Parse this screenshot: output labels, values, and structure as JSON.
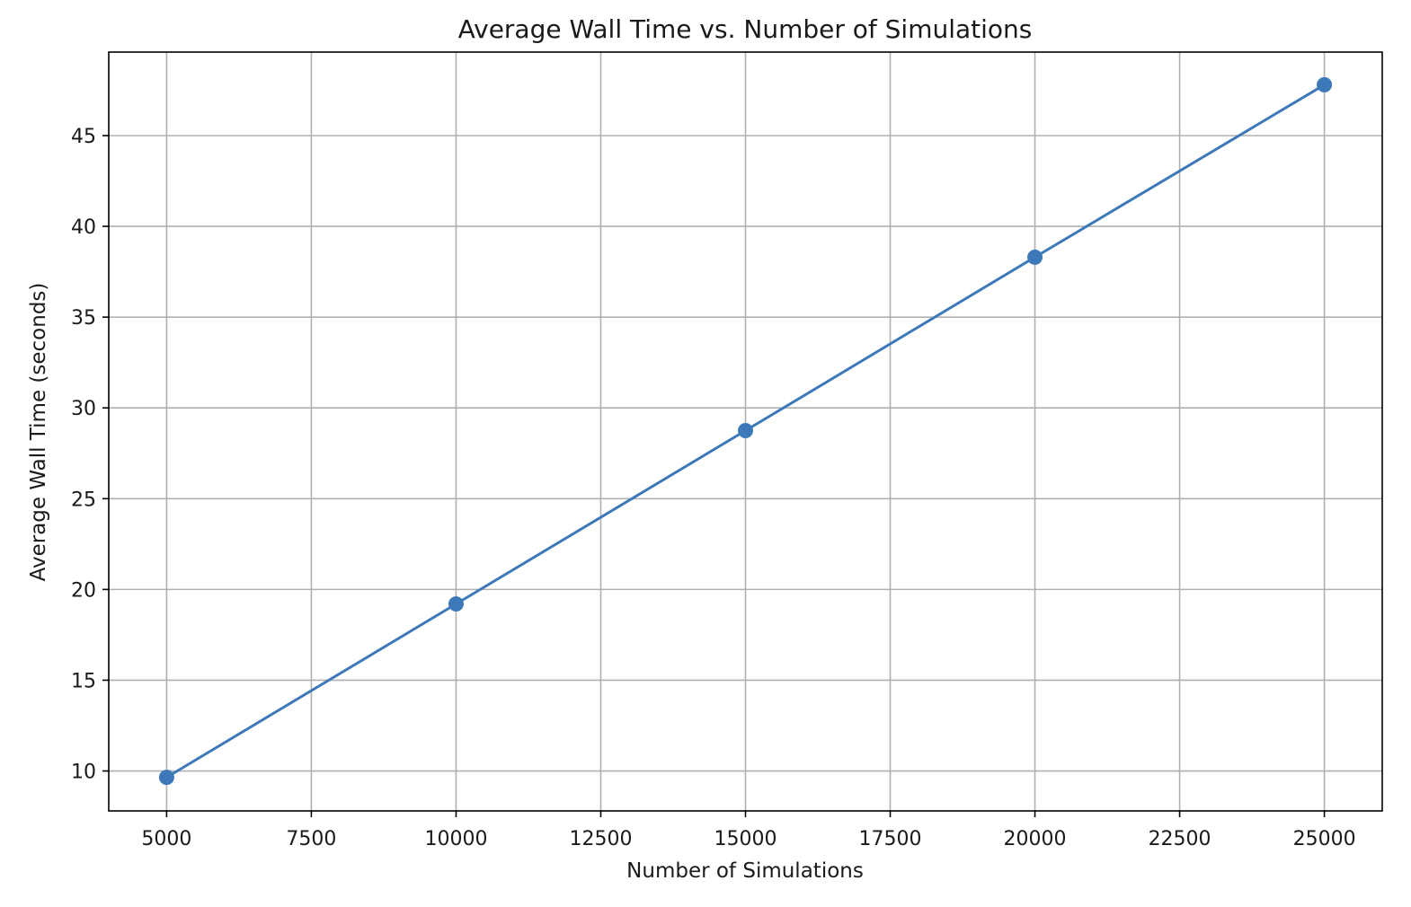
{
  "chart_data": {
    "type": "line",
    "title": "Average Wall Time vs. Number of Simulations",
    "xlabel": "Number of Simulations",
    "ylabel": "Average Wall Time (seconds)",
    "xlim": [
      4000,
      26000
    ],
    "ylim": [
      7.8,
      49.6
    ],
    "xticks": [
      5000,
      7500,
      10000,
      12500,
      15000,
      17500,
      20000,
      22500,
      25000
    ],
    "yticks": [
      10,
      15,
      20,
      25,
      30,
      35,
      40,
      45
    ],
    "grid": true,
    "series": [
      {
        "color": "#3d79b9",
        "marker": "circle",
        "x": [
          5000,
          10000,
          15000,
          20000,
          25000
        ],
        "y": [
          9.65,
          19.2,
          28.75,
          38.3,
          47.8
        ]
      }
    ]
  }
}
